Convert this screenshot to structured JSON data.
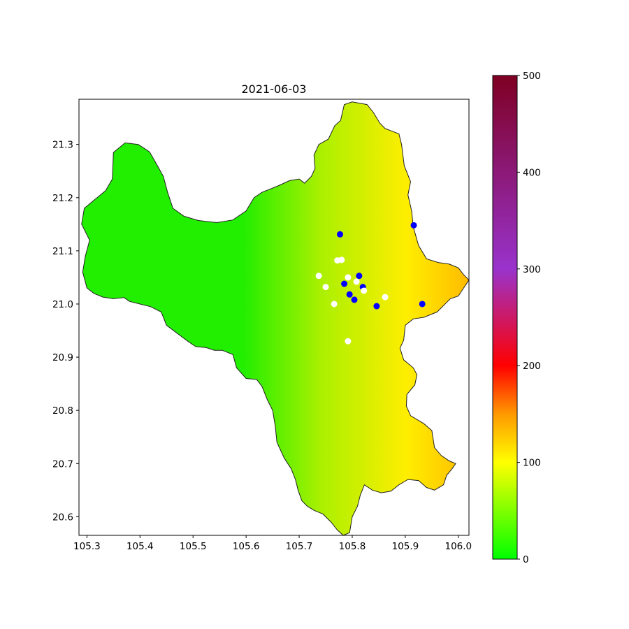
{
  "chart_data": {
    "type": "heatmap",
    "title": "2021-06-03",
    "xlabel": "",
    "ylabel": "",
    "xlim": [
      105.285,
      106.02
    ],
    "ylim": [
      20.565,
      21.385
    ],
    "x_ticks": [
      "105.3",
      "105.4",
      "105.5",
      "105.6",
      "105.7",
      "105.8",
      "105.9",
      "106.0"
    ],
    "y_ticks": [
      "20.6",
      "20.7",
      "20.8",
      "20.9",
      "21.0",
      "21.1",
      "21.2",
      "21.3"
    ],
    "colorbar": {
      "min": 0,
      "max": 500,
      "ticks": [
        "0",
        "100",
        "200",
        "300",
        "400",
        "500"
      ],
      "stops": [
        {
          "value": 0,
          "color": "#00ff00"
        },
        {
          "value": 100,
          "color": "#ffff00"
        },
        {
          "value": 150,
          "color": "#ff9900"
        },
        {
          "value": 200,
          "color": "#ff0000"
        },
        {
          "value": 300,
          "color": "#9933cc"
        },
        {
          "value": 500,
          "color": "#7e0023"
        }
      ]
    },
    "field_colors": {
      "west": "#22ee00",
      "center": "#aaf000",
      "east_edge": "#ffee00",
      "far_east": "#ffbb00"
    },
    "boundary": [
      [
        105.35,
        21.285
      ],
      [
        105.372,
        21.303
      ],
      [
        105.397,
        21.3
      ],
      [
        105.418,
        21.286
      ],
      [
        105.43,
        21.265
      ],
      [
        105.444,
        21.24
      ],
      [
        105.452,
        21.21
      ],
      [
        105.462,
        21.18
      ],
      [
        105.483,
        21.165
      ],
      [
        105.51,
        21.157
      ],
      [
        105.545,
        21.153
      ],
      [
        105.575,
        21.158
      ],
      [
        105.6,
        21.175
      ],
      [
        105.615,
        21.2
      ],
      [
        105.63,
        21.21
      ],
      [
        105.66,
        21.222
      ],
      [
        105.682,
        21.232
      ],
      [
        105.7,
        21.235
      ],
      [
        105.71,
        21.227
      ],
      [
        105.723,
        21.24
      ],
      [
        105.73,
        21.255
      ],
      [
        105.728,
        21.28
      ],
      [
        105.737,
        21.3
      ],
      [
        105.755,
        21.31
      ],
      [
        105.767,
        21.335
      ],
      [
        105.778,
        21.345
      ],
      [
        105.785,
        21.375
      ],
      [
        105.8,
        21.38
      ],
      [
        105.828,
        21.375
      ],
      [
        105.84,
        21.36
      ],
      [
        105.852,
        21.34
      ],
      [
        105.862,
        21.33
      ],
      [
        105.875,
        21.325
      ],
      [
        105.888,
        21.32
      ],
      [
        105.893,
        21.3
      ],
      [
        105.898,
        21.26
      ],
      [
        105.91,
        21.23
      ],
      [
        105.905,
        21.205
      ],
      [
        105.912,
        21.175
      ],
      [
        105.915,
        21.145
      ],
      [
        105.925,
        21.11
      ],
      [
        105.94,
        21.085
      ],
      [
        105.962,
        21.078
      ],
      [
        105.983,
        21.075
      ],
      [
        106.0,
        21.068
      ],
      [
        106.01,
        21.055
      ],
      [
        106.02,
        21.045
      ],
      [
        106.01,
        21.03
      ],
      [
        106.0,
        21.015
      ],
      [
        105.985,
        21.01
      ],
      [
        105.96,
        20.985
      ],
      [
        105.935,
        20.975
      ],
      [
        105.915,
        20.972
      ],
      [
        105.9,
        20.96
      ],
      [
        105.897,
        20.932
      ],
      [
        105.89,
        20.917
      ],
      [
        105.897,
        20.895
      ],
      [
        105.915,
        20.88
      ],
      [
        105.922,
        20.867
      ],
      [
        105.918,
        20.848
      ],
      [
        105.903,
        20.83
      ],
      [
        105.902,
        20.808
      ],
      [
        105.91,
        20.79
      ],
      [
        105.935,
        20.775
      ],
      [
        105.95,
        20.762
      ],
      [
        105.955,
        20.73
      ],
      [
        105.968,
        20.715
      ],
      [
        105.983,
        20.705
      ],
      [
        105.995,
        20.7
      ],
      [
        105.988,
        20.69
      ],
      [
        105.978,
        20.678
      ],
      [
        105.972,
        20.66
      ],
      [
        105.955,
        20.65
      ],
      [
        105.94,
        20.655
      ],
      [
        105.925,
        20.668
      ],
      [
        105.905,
        20.67
      ],
      [
        105.888,
        20.66
      ],
      [
        105.873,
        20.648
      ],
      [
        105.855,
        20.645
      ],
      [
        105.838,
        20.65
      ],
      [
        105.823,
        20.66
      ],
      [
        105.815,
        20.64
      ],
      [
        105.81,
        20.62
      ],
      [
        105.8,
        20.6
      ],
      [
        105.795,
        20.57
      ],
      [
        105.783,
        20.565
      ],
      [
        105.772,
        20.575
      ],
      [
        105.76,
        20.59
      ],
      [
        105.745,
        20.605
      ],
      [
        105.728,
        20.612
      ],
      [
        105.715,
        20.62
      ],
      [
        105.705,
        20.63
      ],
      [
        105.698,
        20.65
      ],
      [
        105.693,
        20.67
      ],
      [
        105.685,
        20.69
      ],
      [
        105.672,
        20.71
      ],
      [
        105.658,
        20.74
      ],
      [
        105.655,
        20.77
      ],
      [
        105.65,
        20.8
      ],
      [
        105.64,
        20.82
      ],
      [
        105.63,
        20.845
      ],
      [
        105.62,
        20.858
      ],
      [
        105.6,
        20.86
      ],
      [
        105.582,
        20.88
      ],
      [
        105.575,
        20.905
      ],
      [
        105.555,
        20.913
      ],
      [
        105.54,
        20.913
      ],
      [
        105.525,
        20.918
      ],
      [
        105.505,
        20.92
      ],
      [
        105.49,
        20.93
      ],
      [
        105.47,
        20.945
      ],
      [
        105.45,
        20.96
      ],
      [
        105.44,
        20.985
      ],
      [
        105.42,
        20.995
      ],
      [
        105.4,
        21.0
      ],
      [
        105.38,
        21.005
      ],
      [
        105.37,
        21.012
      ],
      [
        105.35,
        21.01
      ],
      [
        105.33,
        21.013
      ],
      [
        105.313,
        21.02
      ],
      [
        105.3,
        21.03
      ],
      [
        105.292,
        21.06
      ],
      [
        105.297,
        21.09
      ],
      [
        105.305,
        21.12
      ],
      [
        105.29,
        21.15
      ],
      [
        105.295,
        21.18
      ],
      [
        105.313,
        21.195
      ],
      [
        105.335,
        21.213
      ],
      [
        105.348,
        21.235
      ]
    ],
    "points": [
      {
        "lon": 105.777,
        "lat": 21.131,
        "color": "#0000ff"
      },
      {
        "lon": 105.916,
        "lat": 21.148,
        "color": "#0000ff"
      },
      {
        "lon": 105.813,
        "lat": 21.053,
        "color": "#0000ff"
      },
      {
        "lon": 105.785,
        "lat": 21.038,
        "color": "#0000ff"
      },
      {
        "lon": 105.82,
        "lat": 21.032,
        "color": "#0000ff"
      },
      {
        "lon": 105.795,
        "lat": 21.018,
        "color": "#0000ff"
      },
      {
        "lon": 105.804,
        "lat": 21.008,
        "color": "#0000ff"
      },
      {
        "lon": 105.846,
        "lat": 20.996,
        "color": "#0000ff"
      },
      {
        "lon": 105.932,
        "lat": 21.0,
        "color": "#0000ff"
      },
      {
        "lon": 105.772,
        "lat": 21.082,
        "color": "#ffffff"
      },
      {
        "lon": 105.78,
        "lat": 21.083,
        "color": "#ffffff"
      },
      {
        "lon": 105.737,
        "lat": 21.053,
        "color": "#ffffff"
      },
      {
        "lon": 105.75,
        "lat": 21.032,
        "color": "#ffffff"
      },
      {
        "lon": 105.792,
        "lat": 21.05,
        "color": "#ffffff"
      },
      {
        "lon": 105.808,
        "lat": 21.042,
        "color": "#ffffff"
      },
      {
        "lon": 105.822,
        "lat": 21.025,
        "color": "#ffffff"
      },
      {
        "lon": 105.766,
        "lat": 21.0,
        "color": "#ffffff"
      },
      {
        "lon": 105.862,
        "lat": 21.013,
        "color": "#ffffff"
      },
      {
        "lon": 105.792,
        "lat": 20.93,
        "color": "#ffffff"
      }
    ]
  }
}
